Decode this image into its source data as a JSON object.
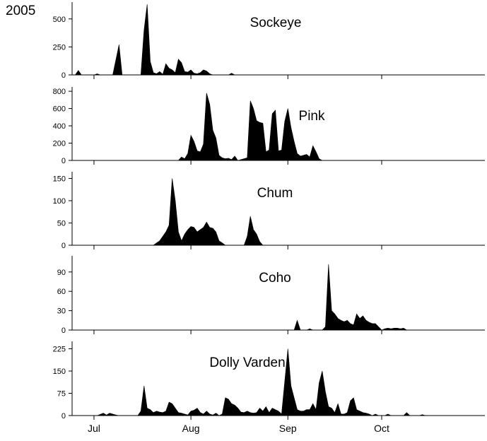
{
  "figure": {
    "year_label": "2005"
  },
  "chart_data": {
    "type": "area",
    "shared_x_axis": {
      "units": "day of 2005",
      "range": [
        "2005-06-24",
        "2005-11-03"
      ],
      "month_ticks": [
        {
          "label": "Jul",
          "date": "2005-07-01"
        },
        {
          "label": "Aug",
          "date": "2005-08-01"
        },
        {
          "label": "Sep",
          "date": "2005-09-01"
        },
        {
          "label": "Oct",
          "date": "2005-10-01"
        }
      ]
    },
    "grid": false,
    "panels": [
      {
        "title": "Sockeye",
        "ylim": [
          0,
          650
        ],
        "yticks": [
          0,
          250,
          500
        ],
        "points": [
          [
            "2005-06-25",
            0
          ],
          [
            "2005-06-26",
            40
          ],
          [
            "2005-06-27",
            0
          ],
          [
            "2005-07-01",
            0
          ],
          [
            "2005-07-02",
            10
          ],
          [
            "2005-07-03",
            0
          ],
          [
            "2005-07-07",
            0
          ],
          [
            "2005-07-09",
            270
          ],
          [
            "2005-07-10",
            0
          ],
          [
            "2005-07-16",
            0
          ],
          [
            "2005-07-17",
            400
          ],
          [
            "2005-07-18",
            630
          ],
          [
            "2005-07-19",
            120
          ],
          [
            "2005-07-20",
            20
          ],
          [
            "2005-07-21",
            10
          ],
          [
            "2005-07-22",
            30
          ],
          [
            "2005-07-23",
            5
          ],
          [
            "2005-07-24",
            100
          ],
          [
            "2005-07-25",
            60
          ],
          [
            "2005-07-26",
            45
          ],
          [
            "2005-07-27",
            20
          ],
          [
            "2005-07-28",
            140
          ],
          [
            "2005-07-29",
            110
          ],
          [
            "2005-07-30",
            30
          ],
          [
            "2005-07-31",
            25
          ],
          [
            "2005-08-01",
            45
          ],
          [
            "2005-08-02",
            15
          ],
          [
            "2005-08-03",
            10
          ],
          [
            "2005-08-04",
            20
          ],
          [
            "2005-08-05",
            45
          ],
          [
            "2005-08-06",
            35
          ],
          [
            "2005-08-07",
            10
          ],
          [
            "2005-08-08",
            0
          ],
          [
            "2005-08-13",
            0
          ],
          [
            "2005-08-14",
            15
          ],
          [
            "2005-08-15",
            0
          ]
        ]
      },
      {
        "title": "Pink",
        "ylim": [
          0,
          850
        ],
        "yticks": [
          0,
          200,
          400,
          600,
          800
        ],
        "points": [
          [
            "2005-07-28",
            0
          ],
          [
            "2005-07-29",
            40
          ],
          [
            "2005-07-30",
            20
          ],
          [
            "2005-07-31",
            80
          ],
          [
            "2005-08-01",
            290
          ],
          [
            "2005-08-02",
            220
          ],
          [
            "2005-08-03",
            110
          ],
          [
            "2005-08-04",
            100
          ],
          [
            "2005-08-05",
            190
          ],
          [
            "2005-08-06",
            780
          ],
          [
            "2005-08-07",
            650
          ],
          [
            "2005-08-08",
            350
          ],
          [
            "2005-08-09",
            260
          ],
          [
            "2005-08-10",
            60
          ],
          [
            "2005-08-11",
            30
          ],
          [
            "2005-08-12",
            20
          ],
          [
            "2005-08-13",
            25
          ],
          [
            "2005-08-14",
            10
          ],
          [
            "2005-08-15",
            50
          ],
          [
            "2005-08-16",
            0
          ],
          [
            "2005-08-17",
            10
          ],
          [
            "2005-08-18",
            20
          ],
          [
            "2005-08-19",
            30
          ],
          [
            "2005-08-20",
            690
          ],
          [
            "2005-08-21",
            600
          ],
          [
            "2005-08-22",
            460
          ],
          [
            "2005-08-23",
            440
          ],
          [
            "2005-08-24",
            430
          ],
          [
            "2005-08-25",
            100
          ],
          [
            "2005-08-26",
            120
          ],
          [
            "2005-08-27",
            540
          ],
          [
            "2005-08-28",
            580
          ],
          [
            "2005-08-29",
            110
          ],
          [
            "2005-08-30",
            120
          ],
          [
            "2005-08-31",
            450
          ],
          [
            "2005-09-01",
            600
          ],
          [
            "2005-09-02",
            380
          ],
          [
            "2005-09-03",
            220
          ],
          [
            "2005-09-04",
            80
          ],
          [
            "2005-09-05",
            50
          ],
          [
            "2005-09-06",
            60
          ],
          [
            "2005-09-07",
            70
          ],
          [
            "2005-09-08",
            40
          ],
          [
            "2005-09-09",
            170
          ],
          [
            "2005-09-10",
            100
          ],
          [
            "2005-09-11",
            20
          ],
          [
            "2005-09-12",
            0
          ]
        ]
      },
      {
        "title": "Chum",
        "ylim": [
          0,
          165
        ],
        "yticks": [
          0,
          50,
          100,
          150
        ],
        "points": [
          [
            "2005-07-20",
            0
          ],
          [
            "2005-07-21",
            5
          ],
          [
            "2005-07-22",
            10
          ],
          [
            "2005-07-23",
            20
          ],
          [
            "2005-07-24",
            30
          ],
          [
            "2005-07-25",
            45
          ],
          [
            "2005-07-26",
            150
          ],
          [
            "2005-07-27",
            100
          ],
          [
            "2005-07-28",
            30
          ],
          [
            "2005-07-29",
            10
          ],
          [
            "2005-07-30",
            25
          ],
          [
            "2005-07-31",
            35
          ],
          [
            "2005-08-01",
            42
          ],
          [
            "2005-08-02",
            40
          ],
          [
            "2005-08-03",
            30
          ],
          [
            "2005-08-04",
            35
          ],
          [
            "2005-08-05",
            40
          ],
          [
            "2005-08-06",
            52
          ],
          [
            "2005-08-07",
            40
          ],
          [
            "2005-08-08",
            38
          ],
          [
            "2005-08-09",
            30
          ],
          [
            "2005-08-10",
            10
          ],
          [
            "2005-08-11",
            5
          ],
          [
            "2005-08-12",
            0
          ],
          [
            "2005-08-18",
            0
          ],
          [
            "2005-08-19",
            20
          ],
          [
            "2005-08-20",
            65
          ],
          [
            "2005-08-21",
            35
          ],
          [
            "2005-08-22",
            25
          ],
          [
            "2005-08-23",
            8
          ],
          [
            "2005-08-24",
            0
          ]
        ]
      },
      {
        "title": "Coho",
        "ylim": [
          0,
          115
        ],
        "yticks": [
          0,
          30,
          60,
          90
        ],
        "points": [
          [
            "2005-09-03",
            0
          ],
          [
            "2005-09-04",
            15
          ],
          [
            "2005-09-05",
            0
          ],
          [
            "2005-09-07",
            0
          ],
          [
            "2005-09-08",
            2
          ],
          [
            "2005-09-09",
            0
          ],
          [
            "2005-09-12",
            0
          ],
          [
            "2005-09-13",
            5
          ],
          [
            "2005-09-14",
            102
          ],
          [
            "2005-09-15",
            30
          ],
          [
            "2005-09-16",
            25
          ],
          [
            "2005-09-17",
            18
          ],
          [
            "2005-09-18",
            15
          ],
          [
            "2005-09-19",
            13
          ],
          [
            "2005-09-20",
            15
          ],
          [
            "2005-09-21",
            10
          ],
          [
            "2005-09-22",
            8
          ],
          [
            "2005-09-23",
            25
          ],
          [
            "2005-09-24",
            18
          ],
          [
            "2005-09-25",
            22
          ],
          [
            "2005-09-26",
            15
          ],
          [
            "2005-09-27",
            12
          ],
          [
            "2005-09-28",
            10
          ],
          [
            "2005-09-29",
            10
          ],
          [
            "2005-09-30",
            5
          ],
          [
            "2005-10-01",
            0
          ],
          [
            "2005-10-02",
            2
          ],
          [
            "2005-10-03",
            3
          ],
          [
            "2005-10-04",
            2
          ],
          [
            "2005-10-05",
            3
          ],
          [
            "2005-10-06",
            3
          ],
          [
            "2005-10-07",
            2
          ],
          [
            "2005-10-08",
            3
          ],
          [
            "2005-10-09",
            0
          ]
        ]
      },
      {
        "title": "Dolly Varden",
        "ylim": [
          0,
          250
        ],
        "yticks": [
          0,
          75,
          150,
          225
        ],
        "points": [
          [
            "2005-07-02",
            0
          ],
          [
            "2005-07-04",
            8
          ],
          [
            "2005-07-05",
            2
          ],
          [
            "2005-07-06",
            8
          ],
          [
            "2005-07-07",
            5
          ],
          [
            "2005-07-08",
            2
          ],
          [
            "2005-07-09",
            0
          ],
          [
            "2005-07-10",
            0
          ],
          [
            "2005-07-11",
            0
          ],
          [
            "2005-07-12",
            0
          ],
          [
            "2005-07-13",
            0
          ],
          [
            "2005-07-14",
            0
          ],
          [
            "2005-07-15",
            0
          ],
          [
            "2005-07-16",
            15
          ],
          [
            "2005-07-17",
            100
          ],
          [
            "2005-07-18",
            25
          ],
          [
            "2005-07-19",
            20
          ],
          [
            "2005-07-20",
            10
          ],
          [
            "2005-07-21",
            15
          ],
          [
            "2005-07-22",
            12
          ],
          [
            "2005-07-23",
            10
          ],
          [
            "2005-07-24",
            15
          ],
          [
            "2005-07-25",
            45
          ],
          [
            "2005-07-26",
            40
          ],
          [
            "2005-07-27",
            25
          ],
          [
            "2005-07-28",
            10
          ],
          [
            "2005-07-29",
            8
          ],
          [
            "2005-07-30",
            5
          ],
          [
            "2005-07-31",
            2
          ],
          [
            "2005-08-01",
            15
          ],
          [
            "2005-08-02",
            18
          ],
          [
            "2005-08-03",
            25
          ],
          [
            "2005-08-04",
            10
          ],
          [
            "2005-08-05",
            5
          ],
          [
            "2005-08-06",
            15
          ],
          [
            "2005-08-07",
            5
          ],
          [
            "2005-08-08",
            2
          ],
          [
            "2005-08-09",
            8
          ],
          [
            "2005-08-10",
            0
          ],
          [
            "2005-08-11",
            5
          ],
          [
            "2005-08-12",
            60
          ],
          [
            "2005-08-13",
            55
          ],
          [
            "2005-08-14",
            40
          ],
          [
            "2005-08-15",
            35
          ],
          [
            "2005-08-16",
            25
          ],
          [
            "2005-08-17",
            12
          ],
          [
            "2005-08-18",
            10
          ],
          [
            "2005-08-19",
            15
          ],
          [
            "2005-08-20",
            10
          ],
          [
            "2005-08-21",
            8
          ],
          [
            "2005-08-22",
            10
          ],
          [
            "2005-08-23",
            25
          ],
          [
            "2005-08-24",
            15
          ],
          [
            "2005-08-25",
            30
          ],
          [
            "2005-08-26",
            10
          ],
          [
            "2005-08-27",
            25
          ],
          [
            "2005-08-28",
            20
          ],
          [
            "2005-08-29",
            15
          ],
          [
            "2005-08-30",
            5
          ],
          [
            "2005-09-01",
            225
          ],
          [
            "2005-09-02",
            100
          ],
          [
            "2005-09-03",
            60
          ],
          [
            "2005-09-04",
            20
          ],
          [
            "2005-09-05",
            15
          ],
          [
            "2005-09-06",
            15
          ],
          [
            "2005-09-07",
            20
          ],
          [
            "2005-09-08",
            20
          ],
          [
            "2005-09-09",
            40
          ],
          [
            "2005-09-10",
            20
          ],
          [
            "2005-09-11",
            110
          ],
          [
            "2005-09-12",
            150
          ],
          [
            "2005-09-13",
            80
          ],
          [
            "2005-09-14",
            30
          ],
          [
            "2005-09-15",
            25
          ],
          [
            "2005-09-16",
            10
          ],
          [
            "2005-09-17",
            40
          ],
          [
            "2005-09-18",
            5
          ],
          [
            "2005-09-19",
            5
          ],
          [
            "2005-09-20",
            10
          ],
          [
            "2005-09-21",
            50
          ],
          [
            "2005-09-22",
            60
          ],
          [
            "2005-09-23",
            20
          ],
          [
            "2005-09-24",
            15
          ],
          [
            "2005-09-25",
            10
          ],
          [
            "2005-09-26",
            8
          ],
          [
            "2005-09-27",
            5
          ],
          [
            "2005-09-28",
            0
          ],
          [
            "2005-09-29",
            5
          ],
          [
            "2005-09-30",
            0
          ],
          [
            "2005-10-02",
            0
          ],
          [
            "2005-10-03",
            5
          ],
          [
            "2005-10-04",
            0
          ],
          [
            "2005-10-08",
            0
          ],
          [
            "2005-10-09",
            10
          ],
          [
            "2005-10-10",
            0
          ],
          [
            "2005-10-13",
            0
          ],
          [
            "2005-10-14",
            3
          ],
          [
            "2005-10-15",
            0
          ]
        ]
      }
    ]
  }
}
